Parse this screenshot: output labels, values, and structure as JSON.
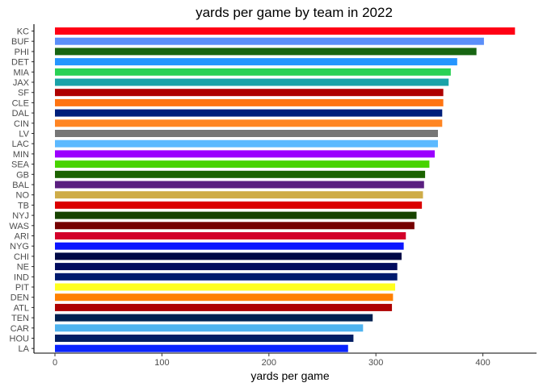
{
  "chart_data": {
    "type": "bar",
    "orientation": "horizontal",
    "title": "yards per game by team in 2022",
    "xlabel": "yards per game",
    "ylabel": "",
    "xlim": [
      0,
      450
    ],
    "xticks": [
      0,
      100,
      200,
      300,
      400
    ],
    "grid": false,
    "legend": "none",
    "bars": [
      {
        "team": "KC",
        "value": 430,
        "color": "#ff0015"
      },
      {
        "team": "BUF",
        "value": 401,
        "color": "#5b8ff9"
      },
      {
        "team": "PHI",
        "value": 394,
        "color": "#176512"
      },
      {
        "team": "DET",
        "value": 376,
        "color": "#2596ff"
      },
      {
        "team": "MIA",
        "value": 370,
        "color": "#2ad155"
      },
      {
        "team": "JAX",
        "value": 368,
        "color": "#1aa2a8"
      },
      {
        "team": "SF",
        "value": 363,
        "color": "#ae0000"
      },
      {
        "team": "CLE",
        "value": 363,
        "color": "#ff7411"
      },
      {
        "team": "DAL",
        "value": 362,
        "color": "#001f7b"
      },
      {
        "team": "CIN",
        "value": 362,
        "color": "#ff8522"
      },
      {
        "team": "LV",
        "value": 358,
        "color": "#767676"
      },
      {
        "team": "LAC",
        "value": 358,
        "color": "#5cb9ff"
      },
      {
        "team": "MIN",
        "value": 355,
        "color": "#9b00ff"
      },
      {
        "team": "SEA",
        "value": 350,
        "color": "#48d300"
      },
      {
        "team": "GB",
        "value": 346,
        "color": "#1b6300"
      },
      {
        "team": "BAL",
        "value": 345,
        "color": "#5a1f80"
      },
      {
        "team": "NO",
        "value": 344,
        "color": "#ceac48"
      },
      {
        "team": "TB",
        "value": 343,
        "color": "#db0000"
      },
      {
        "team": "NYJ",
        "value": 338,
        "color": "#174300"
      },
      {
        "team": "WAS",
        "value": 336,
        "color": "#750000"
      },
      {
        "team": "ARI",
        "value": 328,
        "color": "#d3002a"
      },
      {
        "team": "NYG",
        "value": 326,
        "color": "#0c16ff"
      },
      {
        "team": "CHI",
        "value": 324,
        "color": "#000946"
      },
      {
        "team": "NE",
        "value": 320,
        "color": "#000b5e"
      },
      {
        "team": "IND",
        "value": 320,
        "color": "#001a6e"
      },
      {
        "team": "PIT",
        "value": 318,
        "color": "#ffff1f"
      },
      {
        "team": "DEN",
        "value": 316,
        "color": "#ff8000"
      },
      {
        "team": "ATL",
        "value": 315,
        "color": "#ad0000"
      },
      {
        "team": "TEN",
        "value": 297,
        "color": "#002050"
      },
      {
        "team": "CAR",
        "value": 288,
        "color": "#4fb3ef"
      },
      {
        "team": "HOU",
        "value": 279,
        "color": "#001d63"
      },
      {
        "team": "LA",
        "value": 274,
        "color": "#0a24ff"
      }
    ]
  }
}
